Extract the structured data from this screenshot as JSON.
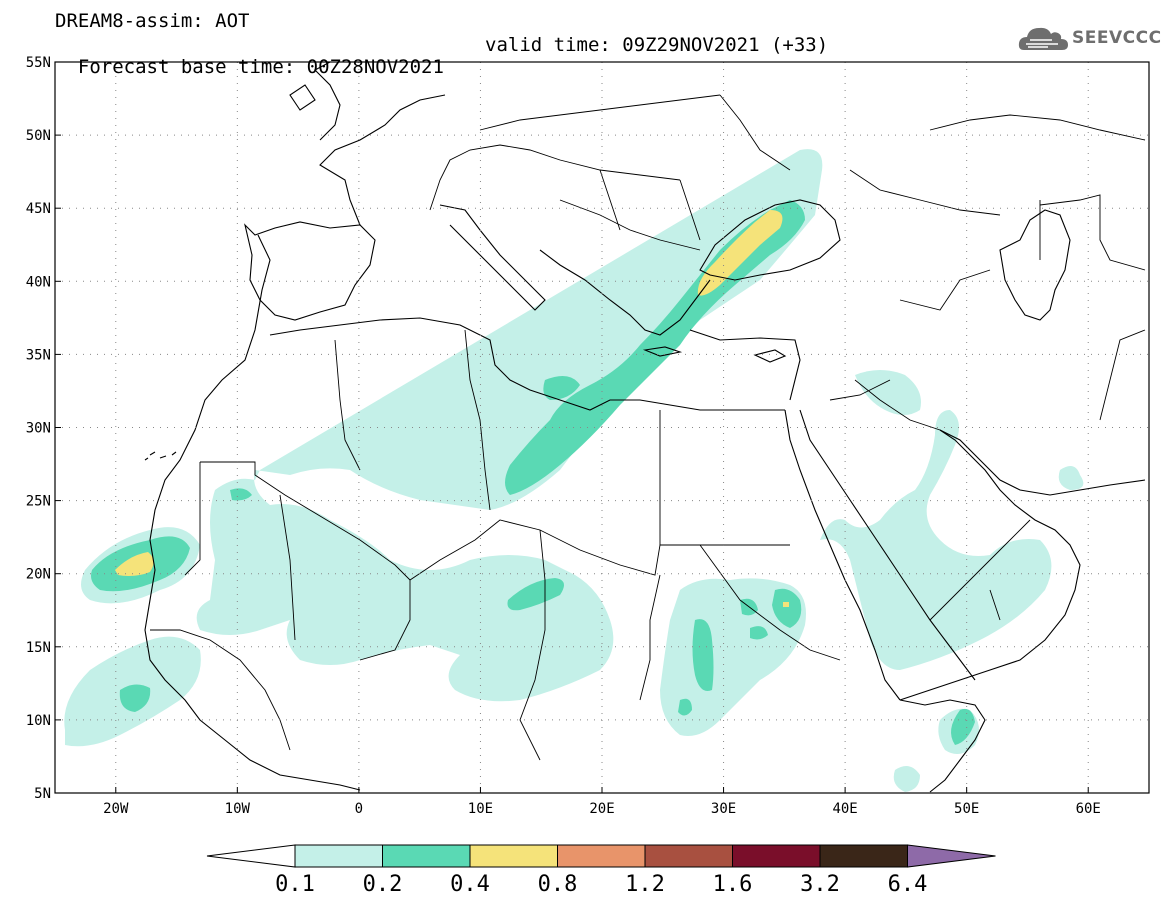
{
  "title": {
    "model_line": "DREAM8-assim: AOT",
    "base_time": "Forecast base time: 00Z28NOV2021",
    "valid_time": "valid time: 09Z29NOV2021 (+33)"
  },
  "logo": {
    "text": "SEEVCCC",
    "icon": "cloud-icon"
  },
  "map": {
    "lat_labels": [
      "55N",
      "50N",
      "45N",
      "40N",
      "35N",
      "30N",
      "25N",
      "20N",
      "15N",
      "10N",
      "5N"
    ],
    "lon_labels": [
      "20W",
      "10W",
      "0",
      "10E",
      "20E",
      "30E",
      "40E",
      "50E",
      "60E"
    ],
    "lat_range": [
      5,
      55
    ],
    "lon_range": [
      -25,
      65
    ]
  },
  "colorbar": {
    "levels": [
      "0.1",
      "0.2",
      "0.4",
      "0.8",
      "1.2",
      "1.6",
      "3.2",
      "6.4"
    ],
    "colors": [
      "#ffffff",
      "#c4f0e8",
      "#5ad9b4",
      "#f5e37a",
      "#e8946a",
      "#a85040",
      "#7a0e2a",
      "#3a2618",
      "#8e6aa8"
    ]
  }
}
